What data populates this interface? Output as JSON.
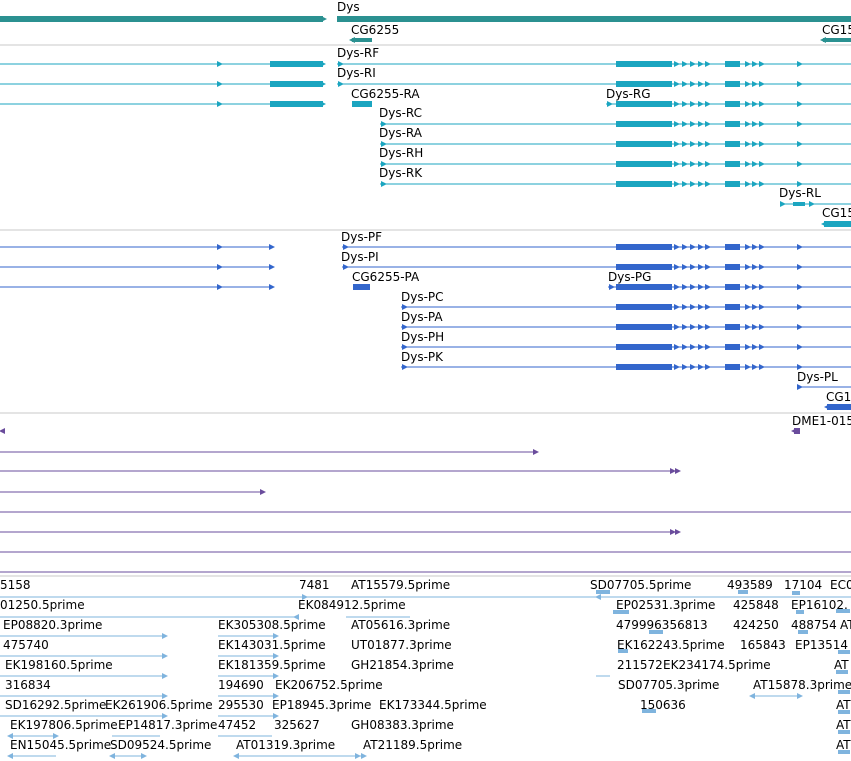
{
  "theme": {
    "gene_color": "#2b9191",
    "transcript_color": "#1ba5c0",
    "protein_color": "#3366cc",
    "alignment_color": "#6a4c9c",
    "est_color": "#7fb4de",
    "separator_color": "#c8c8c8"
  },
  "gene_track": {
    "labels": [
      "Dys",
      "CG6255",
      "CG15"
    ]
  },
  "transcript_track": {
    "labels": [
      "Dys-RF",
      "Dys-RI",
      "CG6255-RA",
      "Dys-RG",
      "Dys-RC",
      "Dys-RA",
      "Dys-RH",
      "Dys-RK",
      "Dys-RL",
      "CG15"
    ]
  },
  "protein_track": {
    "labels": [
      "Dys-PF",
      "Dys-PI",
      "CG6255-PA",
      "Dys-PG",
      "Dys-PC",
      "Dys-PA",
      "Dys-PH",
      "Dys-PK",
      "Dys-PL",
      "CG1"
    ]
  },
  "alignment_track": {
    "labels": [
      "DME1-015"
    ]
  },
  "est_track": {
    "labels": [
      "5158",
      "7481",
      "AT15579.5prime",
      "SD07705.5prime",
      "493589",
      "17104",
      "EC0",
      "01250.5prime",
      "EK084912.5prime",
      "EP02531.3prime",
      "425848",
      "EP16102.",
      "EP08820.3prime",
      "EK305308.5prime",
      "AT05616.3prime",
      "479996356813",
      "424250",
      "488754",
      "AT",
      "475740",
      "EK143031.5prime",
      "UT01877.3prime",
      "EK162243.5prime",
      "165843",
      "EP13514",
      "EK198160.5prime",
      "EK181359.5prime",
      "GH21854.3prime",
      "211572",
      "EK234174.5prime",
      "AT",
      "316834",
      "194690",
      "EK206752.5prime",
      "SD07705.3prime",
      "AT15878.3prime",
      "SD16292.5prime",
      "EK261906.5prime",
      "295530",
      "EP18945.3prime",
      "EK173344.5prime",
      "150636",
      "AT",
      "EK197806.5prime",
      "EP14817.3prime",
      "47452",
      "325627",
      "GH08383.3prime",
      "AT",
      "EN15045.5prime",
      "SD09524.5prime",
      "AT01319.3prime",
      "AT21189.5prime",
      "AT"
    ]
  }
}
